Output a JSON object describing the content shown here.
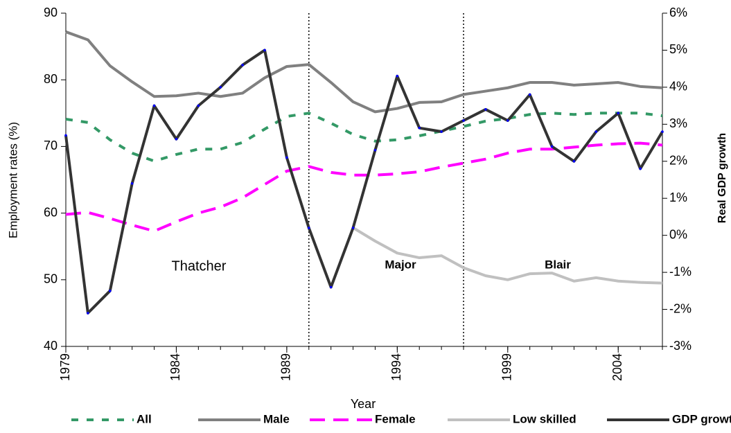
{
  "chart_data": {
    "type": "line",
    "x_label": "Year",
    "y_label": "Employment rates (%)",
    "y2_label": "Real GDP growth",
    "x": [
      1979,
      1980,
      1981,
      1982,
      1983,
      1984,
      1985,
      1986,
      1987,
      1988,
      1989,
      1990,
      1991,
      1992,
      1993,
      1994,
      1995,
      1996,
      1997,
      1998,
      1999,
      2000,
      2001,
      2002,
      2003,
      2004,
      2005,
      2006
    ],
    "xlim": [
      1979,
      2006
    ],
    "xticks": [
      1979,
      1984,
      1989,
      1994,
      1999,
      2004
    ],
    "ylim": [
      40,
      90
    ],
    "yticks": [
      40,
      50,
      60,
      70,
      80,
      90
    ],
    "y2lim": [
      -3,
      6
    ],
    "y2ticks": [
      {
        "value": -3,
        "label": "-3%"
      },
      {
        "value": -2,
        "label": "-2%"
      },
      {
        "value": -1,
        "label": "-1%"
      },
      {
        "value": 0,
        "label": "0%"
      },
      {
        "value": 1,
        "label": "1%"
      },
      {
        "value": 2,
        "label": "2%"
      },
      {
        "value": 3,
        "label": "3%"
      },
      {
        "value": 4,
        "label": "4%"
      },
      {
        "value": 5,
        "label": "5%"
      },
      {
        "value": 6,
        "label": "6%"
      }
    ],
    "series": [
      {
        "name": "All",
        "color": "#339966",
        "dash": "10,12",
        "values": [
          74.1,
          73.6,
          71,
          69,
          67.8,
          68.8,
          69.6,
          69.6,
          70.6,
          72.6,
          74.5,
          75,
          73.5,
          71.8,
          70.8,
          71,
          71.6,
          72.3,
          73,
          73.8,
          74.2,
          74.8,
          75,
          74.8,
          75,
          75,
          75,
          74.6
        ]
      },
      {
        "name": "Male",
        "color": "#808080",
        "dash": "none",
        "values": [
          87.2,
          86,
          82.1,
          79.7,
          77.5,
          77.6,
          78,
          77.5,
          78,
          80.3,
          82,
          82.3,
          79.6,
          76.7,
          75.2,
          75.7,
          76.6,
          76.7,
          77.8,
          78.3,
          78.8,
          79.6,
          79.6,
          79.2,
          79.4,
          79.6,
          79,
          78.8
        ]
      },
      {
        "name": "Female",
        "color": "#ff00ff",
        "dash": "22,12",
        "values": [
          59.8,
          60.1,
          59.2,
          58.2,
          57.3,
          58.7,
          60,
          60.9,
          62.3,
          64.3,
          66.3,
          67,
          66.1,
          65.7,
          65.7,
          65.9,
          66.2,
          66.9,
          67.5,
          68.1,
          69,
          69.6,
          69.6,
          69.9,
          70.2,
          70.4,
          70.5,
          70.2
        ]
      },
      {
        "name": "Low skilled",
        "color": "#c0c0c0",
        "dash": "none",
        "values": [
          null,
          null,
          null,
          null,
          null,
          null,
          null,
          null,
          null,
          null,
          null,
          null,
          null,
          57.8,
          55.8,
          54,
          53.3,
          53.6,
          51.8,
          50.6,
          50,
          50.9,
          51,
          49.8,
          50.3,
          49.8,
          49.6,
          49.5
        ]
      },
      {
        "name": "GDP growth",
        "color": "#333333",
        "dash": "none",
        "axis": "y2",
        "marker_color": "#0000ff",
        "values": [
          2.7,
          -2.1,
          -1.5,
          1.4,
          3.5,
          2.6,
          3.5,
          4.0,
          4.6,
          5.0,
          2.1,
          0.2,
          -1.4,
          0.2,
          2.3,
          4.3,
          2.9,
          2.8,
          3.1,
          3.4,
          3.1,
          3.8,
          2.4,
          2.0,
          2.8,
          3.3,
          1.8,
          2.8
        ]
      }
    ],
    "dividers": [
      1990,
      1997
    ],
    "annotations": [
      "Thatcher",
      "Major",
      "Blair"
    ]
  }
}
